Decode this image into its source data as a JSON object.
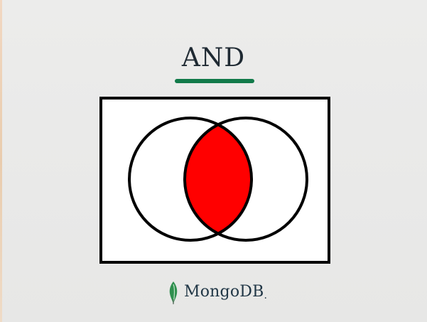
{
  "title": "AND",
  "brand": {
    "name": "MongoDB",
    "suffix": ".",
    "leaf_icon": "mongodb-leaf-icon"
  },
  "colors": {
    "background": "#e9e9e8",
    "title": "#1f2a33",
    "accent": "#127a4a",
    "panel": "#ffffff",
    "outline": "#000000",
    "intersection": "#ff0000"
  },
  "diagram": {
    "type": "venn",
    "sets": 2,
    "highlighted": "intersection"
  }
}
